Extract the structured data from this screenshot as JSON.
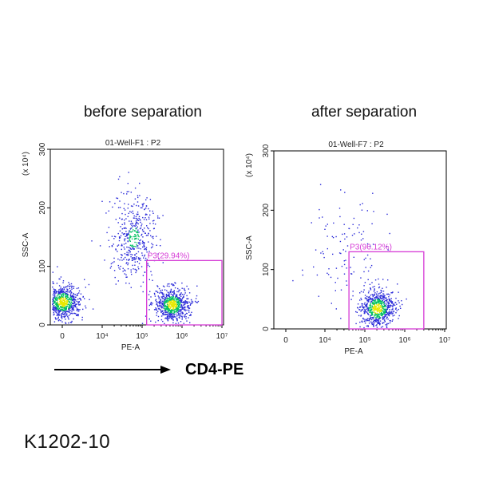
{
  "panels": {
    "left_title": "before separation",
    "right_title": "after separation"
  },
  "arrow_label": "CD4-PE",
  "sample_id": "K1202-10",
  "colors": {
    "gate": "#d63ad6",
    "dots_sparse": "#2b2bd9",
    "dots_dense": "#00c060",
    "dots_peak": "#e8e800",
    "axis": "#000000"
  },
  "chart_data": [
    {
      "type": "scatter",
      "subtitle": "01-Well-F1 : P2",
      "xlabel": "PE-A",
      "ylabel": "SSC-A",
      "yunit": "(x 10⁴)",
      "xscale": "biexponential-log",
      "xticks": [
        "0",
        "10⁴",
        "10⁵",
        "10⁶",
        "10⁷"
      ],
      "xtick_values": [
        0,
        10000,
        100000,
        1000000,
        10000000
      ],
      "yticks": [
        "0",
        "100",
        "200",
        "300"
      ],
      "ylim": [
        0,
        300
      ],
      "gate": {
        "label": "P3(29.94%)",
        "x_min": 130000,
        "x_max": 10000000,
        "y_min": 0,
        "y_max": 110
      },
      "populations": [
        {
          "x_center": 0,
          "y_center": 40,
          "density": "high"
        },
        {
          "x_center": 60000,
          "y_center": 150,
          "density": "medium"
        },
        {
          "x_center": 550000,
          "y_center": 35,
          "density": "high"
        }
      ]
    },
    {
      "type": "scatter",
      "subtitle": "01-Well-F7 : P2",
      "xlabel": "PE-A",
      "ylabel": "SSC-A",
      "yunit": "(x 10⁴)",
      "xscale": "biexponential-log",
      "xticks": [
        "0",
        "10⁴",
        "10⁵",
        "10⁶",
        "10⁷"
      ],
      "xtick_values": [
        0,
        10000,
        100000,
        1000000,
        10000000
      ],
      "yticks": [
        "0",
        "100",
        "200",
        "300"
      ],
      "ylim": [
        0,
        300
      ],
      "gate": {
        "label": "P3(96.12%)",
        "x_min": 40000,
        "x_max": 3000000,
        "y_min": 0,
        "y_max": 130
      },
      "populations": [
        {
          "x_center": 200000,
          "y_center": 35,
          "density": "high"
        },
        {
          "x_center": 30000,
          "y_center": 130,
          "density": "low"
        }
      ]
    }
  ]
}
